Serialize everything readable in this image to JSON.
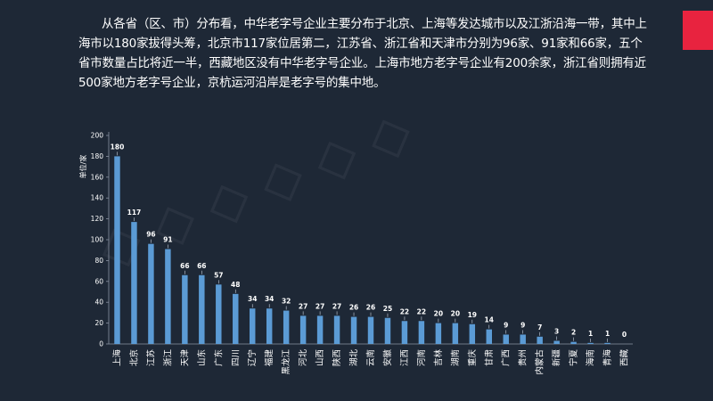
{
  "slide": {
    "intro": "从各省（区、市）分布看，中华老字号企业主要分布于北京、上海等发达城市以及江浙沿海一带，其中上海市以180家拔得头筹，北京市117家位居第二，江苏省、浙江省和天津市分别为96家、91家和66家，五个省市数量占比将近一半，西藏地区没有中华老字号企业。上海市地方老字号企业有200余家，浙江省则拥有近500家地方老字号企业，京杭运河沿岸是老字号的集中地。",
    "accent_color": "#e8233f",
    "background_color": "#1e2836"
  },
  "chart_data": {
    "type": "bar",
    "ylabel": "单位/家",
    "ylim": [
      0,
      200
    ],
    "yticks": [
      0,
      20,
      40,
      60,
      80,
      100,
      120,
      140,
      160,
      180,
      200
    ],
    "bar_color": "#5b9bd5",
    "grid": false,
    "categories": [
      "上海",
      "北京",
      "江苏",
      "浙江",
      "天津",
      "山东",
      "广东",
      "四川",
      "辽宁",
      "福建",
      "黑龙江",
      "河北",
      "山西",
      "陕西",
      "湖北",
      "云南",
      "安徽",
      "江西",
      "河南",
      "吉林",
      "湖南",
      "重庆",
      "甘肃",
      "广西",
      "贵州",
      "内蒙古",
      "新疆",
      "宁夏",
      "海南",
      "青海",
      "西藏"
    ],
    "values": [
      180,
      117,
      96,
      91,
      66,
      66,
      57,
      48,
      34,
      34,
      32,
      27,
      27,
      27,
      26,
      26,
      25,
      22,
      22,
      20,
      20,
      19,
      14,
      9,
      9,
      7,
      3,
      2,
      1,
      1,
      0
    ]
  }
}
